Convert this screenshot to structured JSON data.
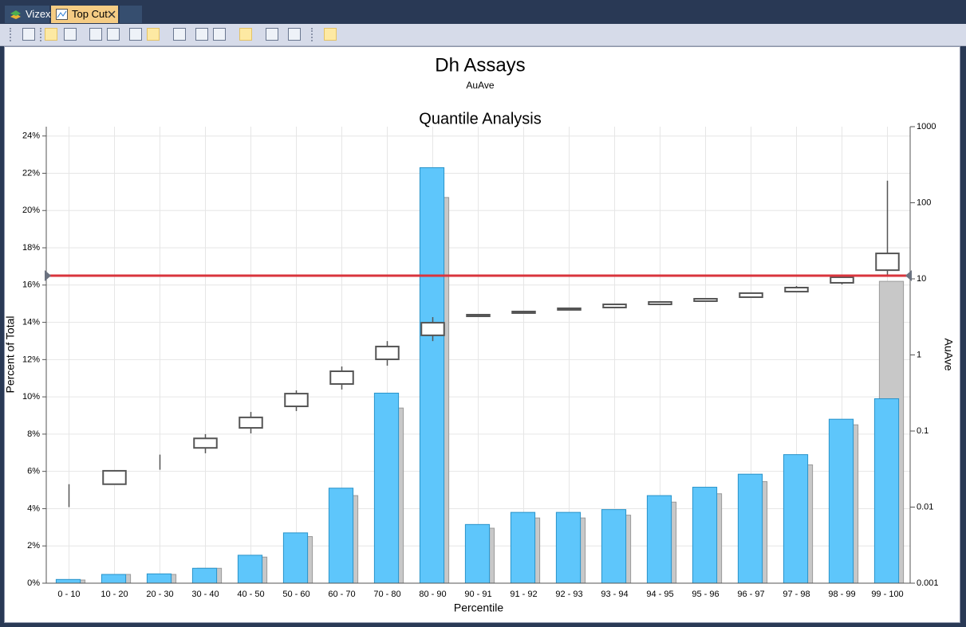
{
  "tabs": [
    "Vizex",
    "Top Cut"
  ],
  "chart_data": {
    "type": "bar",
    "title": "Dh Assays",
    "subtitle": "AuAve",
    "chart_title": "Quantile Analysis",
    "x_label": "Percentile",
    "y_label": "Percent of Total",
    "y2_label": "AuAve",
    "categories": [
      "0 - 10",
      "10 - 20",
      "20 - 30",
      "30 - 40",
      "40 - 50",
      "50 - 60",
      "60 - 70",
      "70 - 80",
      "80 - 90",
      "90 - 91",
      "91 - 92",
      "92 - 93",
      "93 - 94",
      "94 - 95",
      "95 - 96",
      "96 - 97",
      "97 - 98",
      "98 - 99",
      "99 - 100"
    ],
    "series": [
      {
        "color": "#c8c8c8",
        "values": [
          0.17,
          0.47,
          0.47,
          0.8,
          1.4,
          2.5,
          4.7,
          9.4,
          20.7,
          2.95,
          3.5,
          3.5,
          3.65,
          4.35,
          4.8,
          5.45,
          6.35,
          8.5,
          16.2
        ]
      },
      {
        "color": "#5ec6fb",
        "values": [
          0.2,
          0.47,
          0.5,
          0.8,
          1.5,
          2.7,
          5.1,
          10.2,
          22.3,
          3.15,
          3.8,
          3.8,
          3.95,
          4.7,
          5.15,
          5.85,
          6.9,
          8.8,
          9.9
        ]
      }
    ],
    "boxes": {
      "axis": "y2",
      "color": "#555555",
      "min": [
        0.01,
        0.02,
        0.031,
        0.051,
        0.093,
        0.183,
        0.351,
        0.723,
        1.52,
        3.22,
        3.55,
        3.91,
        4.2,
        4.62,
        5.09,
        5.74,
        6.64,
        8.45,
        11.3
      ],
      "q1": [
        0.01,
        0.02,
        0.04,
        0.06,
        0.11,
        0.211,
        0.415,
        0.875,
        1.81,
        3.22,
        3.55,
        3.91,
        4.2,
        4.62,
        5.09,
        5.74,
        6.79,
        8.87,
        13.0
      ],
      "q3": [
        0.01,
        0.03,
        0.04,
        0.08,
        0.151,
        0.31,
        0.61,
        1.29,
        2.65,
        3.38,
        3.72,
        4.1,
        4.62,
        4.97,
        5.47,
        6.49,
        7.67,
        10.5,
        21.6
      ],
      "max": [
        0.02,
        0.03,
        0.049,
        0.091,
        0.178,
        0.342,
        0.705,
        1.52,
        3.14,
        3.38,
        3.72,
        4.1,
        4.62,
        4.97,
        5.47,
        6.49,
        8.05,
        10.7,
        195
      ]
    },
    "reference_line": {
      "value": 11,
      "axis": "y2",
      "color": "#d9343d"
    },
    "ylim": [
      0,
      24.5
    ],
    "yticks": [
      {
        "value": 0,
        "label": "0%"
      },
      {
        "value": 2,
        "label": "2%"
      },
      {
        "value": 4,
        "label": "4%"
      },
      {
        "value": 6,
        "label": "6%"
      },
      {
        "value": 8,
        "label": "8%"
      },
      {
        "value": 10,
        "label": "10%"
      },
      {
        "value": 12,
        "label": "12%"
      },
      {
        "value": 14,
        "label": "14%"
      },
      {
        "value": 16,
        "label": "16%"
      },
      {
        "value": 18,
        "label": "18%"
      },
      {
        "value": 20,
        "label": "20%"
      },
      {
        "value": 22,
        "label": "22%"
      },
      {
        "value": 24,
        "label": "24%"
      }
    ],
    "y2lim": [
      0.001,
      1000
    ],
    "y2ticks": [
      0.001,
      0.01,
      0.1,
      1,
      10,
      100,
      1000
    ],
    "y2scale": "log",
    "grid": true
  }
}
